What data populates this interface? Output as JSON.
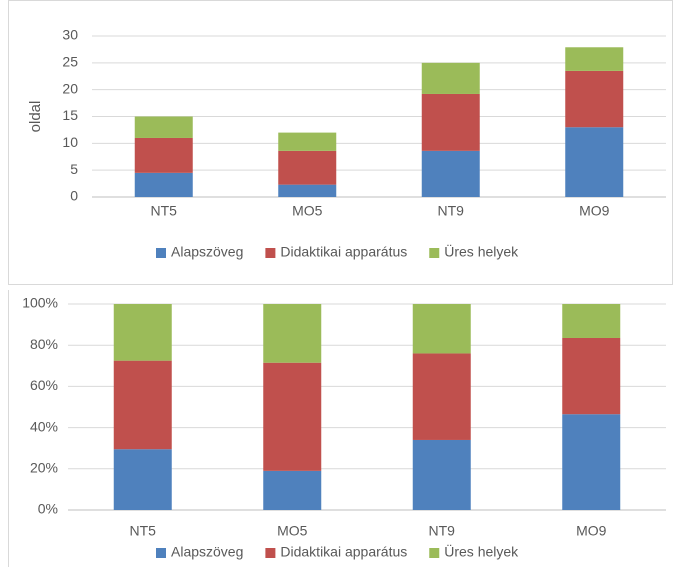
{
  "colors": {
    "series": [
      "#4f81bd",
      "#c0504d",
      "#9bbb59"
    ],
    "grid": "#d9d9d9",
    "axis": "#bfbfbf",
    "text": "#595959"
  },
  "chart_data": [
    {
      "type": "bar",
      "stacked": true,
      "categories": [
        "NT5",
        "MO5",
        "NT9",
        "MO9"
      ],
      "series": [
        {
          "name": "Alapszöveg",
          "values": [
            4.5,
            2.3,
            8.6,
            13
          ]
        },
        {
          "name": "Didaktikai apparátus",
          "values": [
            6.5,
            6.3,
            10.6,
            10.5
          ]
        },
        {
          "name": "Üres helyek",
          "values": [
            4,
            3.4,
            5.8,
            4.4
          ]
        }
      ],
      "ylabel": "oldal",
      "ylim": [
        0,
        30
      ],
      "yticks": [
        "0",
        "5",
        "10",
        "15",
        "20",
        "25",
        "30"
      ],
      "grid": true,
      "legend": "bottom"
    },
    {
      "type": "bar",
      "stacked": true,
      "percent": true,
      "categories": [
        "NT5",
        "MO5",
        "NT9",
        "MO9"
      ],
      "series": [
        {
          "name": "Alapszöveg",
          "values": [
            29.5,
            19,
            34,
            46.5
          ]
        },
        {
          "name": "Didaktikai apparátus",
          "values": [
            43,
            52.5,
            42,
            37
          ]
        },
        {
          "name": "Üres helyek",
          "values": [
            27.5,
            28.5,
            24,
            16.5
          ]
        }
      ],
      "ylim": [
        0,
        100
      ],
      "yticks": [
        "0%",
        "20%",
        "40%",
        "60%",
        "80%",
        "100%"
      ],
      "grid": true,
      "legend": "bottom"
    }
  ]
}
